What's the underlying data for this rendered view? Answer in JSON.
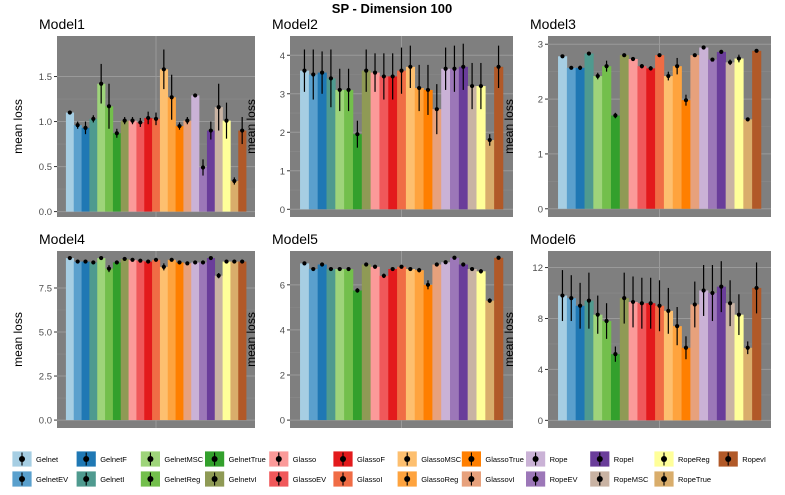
{
  "title": "SP - Dimension 100",
  "ylabel": "mean loss",
  "method_order": [
    "Gelnet",
    "GelnetEV",
    "GelnetF",
    "GelnetI",
    "GelnetMSC",
    "GelnetReg",
    "GelnetTrue",
    "GelnetvI",
    "Glasso",
    "GlassoEV",
    "GlassoF",
    "GlassoI",
    "GlassoMSC",
    "GlassoReg",
    "GlassoTrue",
    "GlassovI",
    "Rope",
    "RopeEV",
    "RopeI",
    "RopeMSC",
    "RopeReg",
    "RopeTrue",
    "RopevI"
  ],
  "colors": {
    "Gelnet": "#a6cee3",
    "GelnetEV": "#5aa0cd",
    "GelnetF": "#1f78b4",
    "GelnetI": "#4f9a8f",
    "GelnetMSC": "#9ed47a",
    "GelnetReg": "#73bf4c",
    "GelnetTrue": "#33a02c",
    "GelnetvI": "#8f9a55",
    "Glasso": "#fb9a99",
    "GlassoEV": "#f0585a",
    "GlassoF": "#e31a1c",
    "GlassoI": "#f06c45",
    "GlassoMSC": "#fdbf6f",
    "GlassoReg": "#fea33e",
    "GlassoTrue": "#ff7f00",
    "GlassovI": "#e7a17c",
    "Rope": "#cab2d6",
    "RopeEV": "#9c77b8",
    "RopeI": "#6a3d9a",
    "RopeMSC": "#c9b3a3",
    "RopeReg": "#ffff99",
    "RopeTrue": "#d9ad6b",
    "RopevI": "#b15928"
  },
  "legend": [
    [
      "Gelnet",
      "GelnetEV"
    ],
    [
      "GelnetF",
      "GelnetI"
    ],
    [
      "GelnetMSC",
      "GelnetReg"
    ],
    [
      "GelnetTrue",
      "GelnetvI"
    ],
    [
      "Glasso",
      "GlassoEV"
    ],
    [
      "GlassoF",
      "GlassoI"
    ],
    [
      "GlassoMSC",
      "GlassoReg"
    ],
    [
      "GlassoTrue",
      "GlassovI"
    ],
    [
      "Rope",
      "RopeEV"
    ],
    [
      "RopeI",
      "RopeMSC"
    ],
    [
      "RopeReg",
      "RopeTrue"
    ],
    [
      "RopevI"
    ]
  ],
  "chart_data": [
    {
      "type": "bar",
      "title": "Model1",
      "ylabel": "mean loss",
      "ylim": [
        -0.06,
        1.95
      ],
      "yticks": [
        0.0,
        0.5,
        1.0,
        1.5
      ],
      "ytick_labels": [
        "0.0",
        "0.5",
        "1.0",
        "1.5"
      ],
      "values": [
        1.1,
        0.96,
        0.93,
        1.03,
        1.42,
        1.17,
        0.87,
        1.01,
        1.01,
        0.99,
        1.04,
        1.03,
        1.58,
        1.27,
        0.95,
        1.01,
        1.29,
        0.49,
        0.9,
        1.16,
        1.01,
        0.34,
        0.9
      ],
      "error": [
        0.02,
        0.04,
        0.07,
        0.04,
        0.22,
        0.25,
        0.05,
        0.04,
        0.04,
        0.05,
        0.07,
        0.07,
        0.22,
        0.25,
        0.04,
        0.04,
        0.01,
        0.09,
        0.1,
        0.26,
        0.2,
        0.04,
        0.15
      ]
    },
    {
      "type": "bar",
      "title": "Model2",
      "ylabel": "mean loss",
      "ylim": [
        -0.2,
        4.5
      ],
      "yticks": [
        0,
        1,
        2,
        3,
        4
      ],
      "ytick_labels": [
        "0",
        "1",
        "2",
        "3",
        "4"
      ],
      "values": [
        3.6,
        3.5,
        3.55,
        3.4,
        3.1,
        3.1,
        1.95,
        3.6,
        3.55,
        3.45,
        3.45,
        3.6,
        3.7,
        3.15,
        3.1,
        2.6,
        3.65,
        3.65,
        3.7,
        3.2,
        3.2,
        1.8,
        3.7
      ],
      "error": [
        0.55,
        0.65,
        0.55,
        0.75,
        0.55,
        0.55,
        0.35,
        0.55,
        0.5,
        0.6,
        0.6,
        0.6,
        0.55,
        0.6,
        0.65,
        0.65,
        0.55,
        0.6,
        0.6,
        0.6,
        0.6,
        0.15,
        0.55
      ]
    },
    {
      "type": "bar",
      "title": "Model3",
      "ylabel": "mean loss",
      "ylim": [
        -0.15,
        3.15
      ],
      "yticks": [
        0,
        1,
        2,
        3
      ],
      "ytick_labels": [
        "0",
        "1",
        "2",
        "3"
      ],
      "values": [
        2.78,
        2.57,
        2.57,
        2.83,
        2.42,
        2.6,
        1.7,
        2.8,
        2.73,
        2.6,
        2.56,
        2.8,
        2.42,
        2.6,
        1.98,
        2.8,
        2.94,
        2.72,
        2.86,
        2.67,
        2.74,
        1.63,
        2.88
      ],
      "error": [
        0.03,
        0.03,
        0.04,
        0.02,
        0.06,
        0.1,
        0.05,
        0.02,
        0.03,
        0.04,
        0.04,
        0.02,
        0.08,
        0.15,
        0.1,
        0.03,
        0.02,
        0.02,
        0.02,
        0.05,
        0.07,
        0.02,
        0.02
      ]
    },
    {
      "type": "bar",
      "title": "Model4",
      "ylabel": "mean loss",
      "ylim": [
        -0.45,
        9.6
      ],
      "yticks": [
        0.0,
        2.5,
        5.0,
        7.5
      ],
      "ytick_labels": [
        "0.0",
        "2.5",
        "5.0",
        "7.5"
      ],
      "values": [
        9.2,
        9.0,
        9.0,
        8.95,
        9.2,
        8.6,
        8.95,
        9.15,
        9.1,
        9.05,
        9.0,
        9.1,
        8.7,
        9.1,
        8.95,
        8.9,
        8.95,
        8.95,
        9.2,
        8.2,
        9.0,
        9.0,
        9.0
      ],
      "error": [
        0.1,
        0.1,
        0.1,
        0.1,
        0.1,
        0.2,
        0.1,
        0.1,
        0.1,
        0.1,
        0.1,
        0.1,
        0.2,
        0.1,
        0.1,
        0.1,
        0.1,
        0.1,
        0.1,
        0.15,
        0.1,
        0.1,
        0.1
      ]
    },
    {
      "type": "bar",
      "title": "Model5",
      "ylabel": "mean loss",
      "ylim": [
        -0.35,
        7.5
      ],
      "yticks": [
        0,
        2,
        4,
        6
      ],
      "ytick_labels": [
        "0",
        "2",
        "4",
        "6"
      ],
      "values": [
        6.95,
        6.7,
        6.9,
        6.7,
        6.7,
        6.7,
        5.75,
        6.9,
        6.8,
        6.4,
        6.7,
        6.8,
        6.7,
        6.65,
        6.0,
        6.9,
        7.0,
        7.2,
        6.9,
        6.7,
        6.6,
        5.3,
        7.2
      ],
      "error": [
        0.05,
        0.05,
        0.05,
        0.05,
        0.05,
        0.05,
        0.1,
        0.05,
        0.05,
        0.1,
        0.05,
        0.05,
        0.05,
        0.1,
        0.2,
        0.05,
        0.05,
        0.05,
        0.05,
        0.05,
        0.1,
        0.1,
        0.05
      ]
    },
    {
      "type": "bar",
      "title": "Model6",
      "ylabel": "mean loss",
      "ylim": [
        -0.6,
        13.3
      ],
      "yticks": [
        0,
        4,
        8,
        12
      ],
      "ytick_labels": [
        "0",
        "4",
        "8",
        "12"
      ],
      "values": [
        9.8,
        9.6,
        9.0,
        9.4,
        8.3,
        7.8,
        5.2,
        9.6,
        9.3,
        9.2,
        9.2,
        9.0,
        8.6,
        7.4,
        5.7,
        9.1,
        10.2,
        10.0,
        10.5,
        9.2,
        8.3,
        5.7,
        10.4
      ],
      "error": [
        2.0,
        1.8,
        1.8,
        2.2,
        1.5,
        1.4,
        0.6,
        2.0,
        2.0,
        2.0,
        2.0,
        2.0,
        1.8,
        1.5,
        0.9,
        1.8,
        2.0,
        2.2,
        2.0,
        1.8,
        1.6,
        0.5,
        2.0
      ]
    }
  ]
}
